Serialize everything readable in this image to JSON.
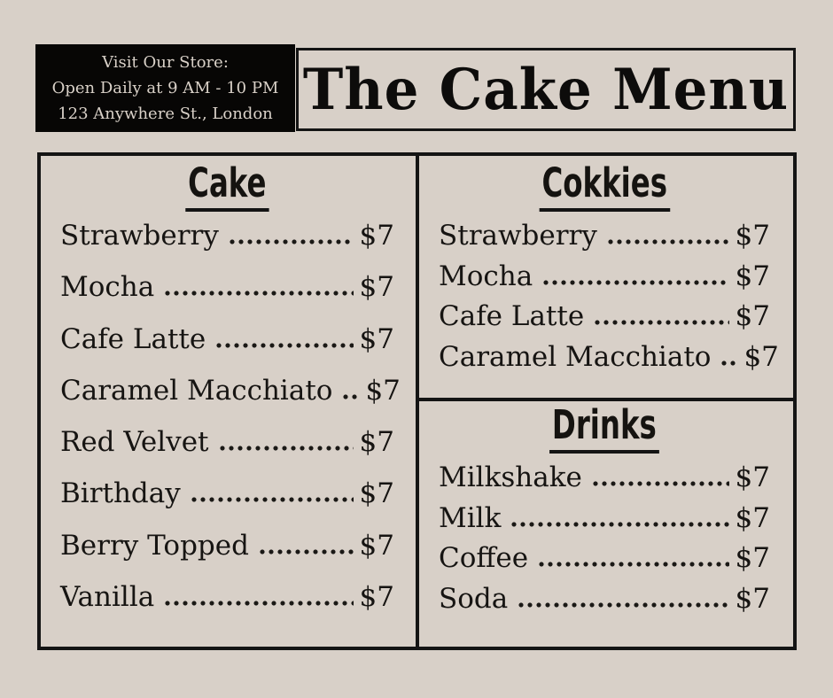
{
  "colors": {
    "background": "#d8d0c8",
    "ink": "#141414",
    "panel_black": "#070605",
    "panel_text": "#d9d1c8"
  },
  "header": {
    "store_info_line1": "Visit Our Store:",
    "store_info_line2": "Open Daily at 9 AM - 10 PM",
    "store_info_line3": "123 Anywhere St., London",
    "title": "The Cake Menu"
  },
  "menu": {
    "sections": [
      {
        "heading": "Cake",
        "items": [
          {
            "name": "Strawberry",
            "price": "$7"
          },
          {
            "name": "Mocha",
            "price": "$7"
          },
          {
            "name": "Cafe Latte",
            "price": "$7"
          },
          {
            "name": "Caramel Macchiato",
            "price": "$7"
          },
          {
            "name": "Red Velvet",
            "price": "$7"
          },
          {
            "name": "Birthday",
            "price": "$7"
          },
          {
            "name": "Berry Topped",
            "price": "$7"
          },
          {
            "name": "Vanilla",
            "price": "$7"
          }
        ]
      },
      {
        "heading": "Cokkies",
        "items": [
          {
            "name": "Strawberry",
            "price": "$7"
          },
          {
            "name": "Mocha",
            "price": "$7"
          },
          {
            "name": "Cafe Latte",
            "price": "$7"
          },
          {
            "name": "Caramel Macchiato",
            "price": "$7"
          }
        ]
      },
      {
        "heading": "Drinks",
        "items": [
          {
            "name": "Milkshake",
            "price": "$7"
          },
          {
            "name": "Milk",
            "price": "$7"
          },
          {
            "name": "Coffee",
            "price": "$7"
          },
          {
            "name": "Soda",
            "price": "$7"
          }
        ]
      }
    ]
  }
}
